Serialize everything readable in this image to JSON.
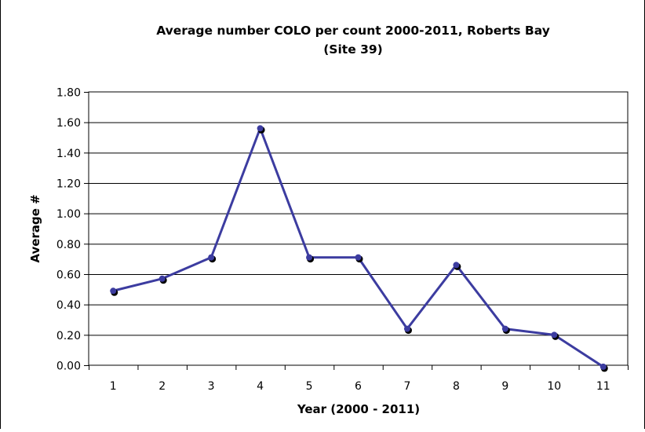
{
  "chart_data": {
    "type": "line",
    "title_line1": "Average number COLO per count 2000-2011, Roberts Bay",
    "title_line2": "(Site 39)",
    "xlabel": "Year (2000 - 2011)",
    "ylabel": "Average #",
    "categories": [
      "1",
      "2",
      "3",
      "4",
      "5",
      "6",
      "7",
      "8",
      "9",
      "10",
      "11"
    ],
    "series": [
      {
        "values": [
          0.49,
          0.57,
          0.71,
          1.56,
          0.71,
          0.71,
          0.24,
          0.66,
          0.24,
          0.2,
          -0.01
        ]
      }
    ],
    "ylim": [
      0,
      1.8
    ],
    "yticks": [
      "0.00",
      "0.20",
      "0.40",
      "0.60",
      "0.80",
      "1.00",
      "1.20",
      "1.40",
      "1.60",
      "1.80"
    ],
    "grid": "horizontal",
    "legend": "none",
    "colors": {
      "line": "#3c3ca0",
      "marker": "#000000",
      "marker_outline": "#3c3ca0",
      "gridline": "#000000",
      "frame": "#000000"
    }
  }
}
